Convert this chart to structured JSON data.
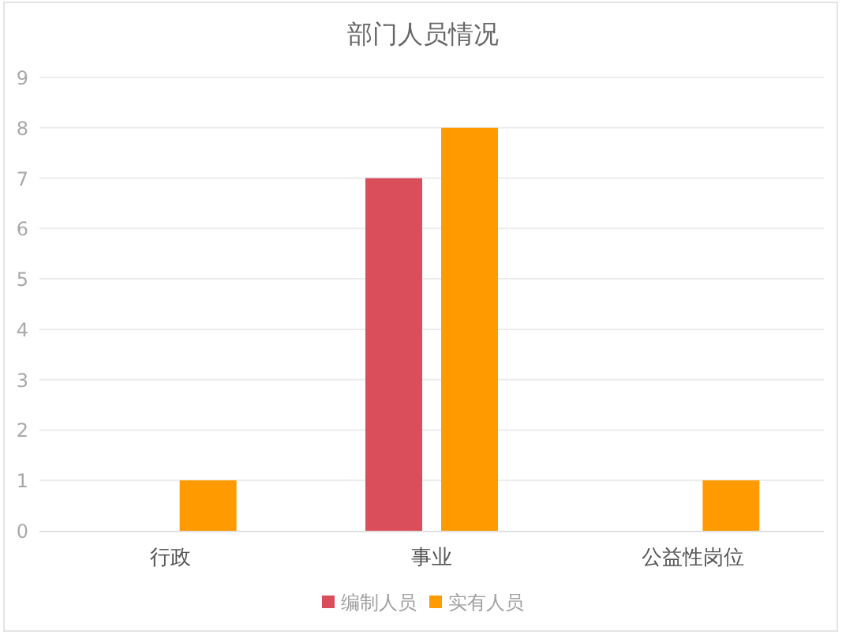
{
  "chart_data": {
    "type": "bar",
    "title": "部门人员情况",
    "categories": [
      "行政",
      "事业",
      "公益性岗位"
    ],
    "series": [
      {
        "name": "编制人员",
        "color": "#d94e5a",
        "values": [
          null,
          7,
          null
        ]
      },
      {
        "name": "实有人员",
        "color": "#ff9a00",
        "values": [
          1,
          8,
          1
        ]
      }
    ],
    "ylim": [
      0,
      9
    ],
    "yticks": [
      0,
      1,
      2,
      3,
      4,
      5,
      6,
      7,
      8,
      9
    ],
    "grid": "y",
    "legend": "bottom"
  }
}
